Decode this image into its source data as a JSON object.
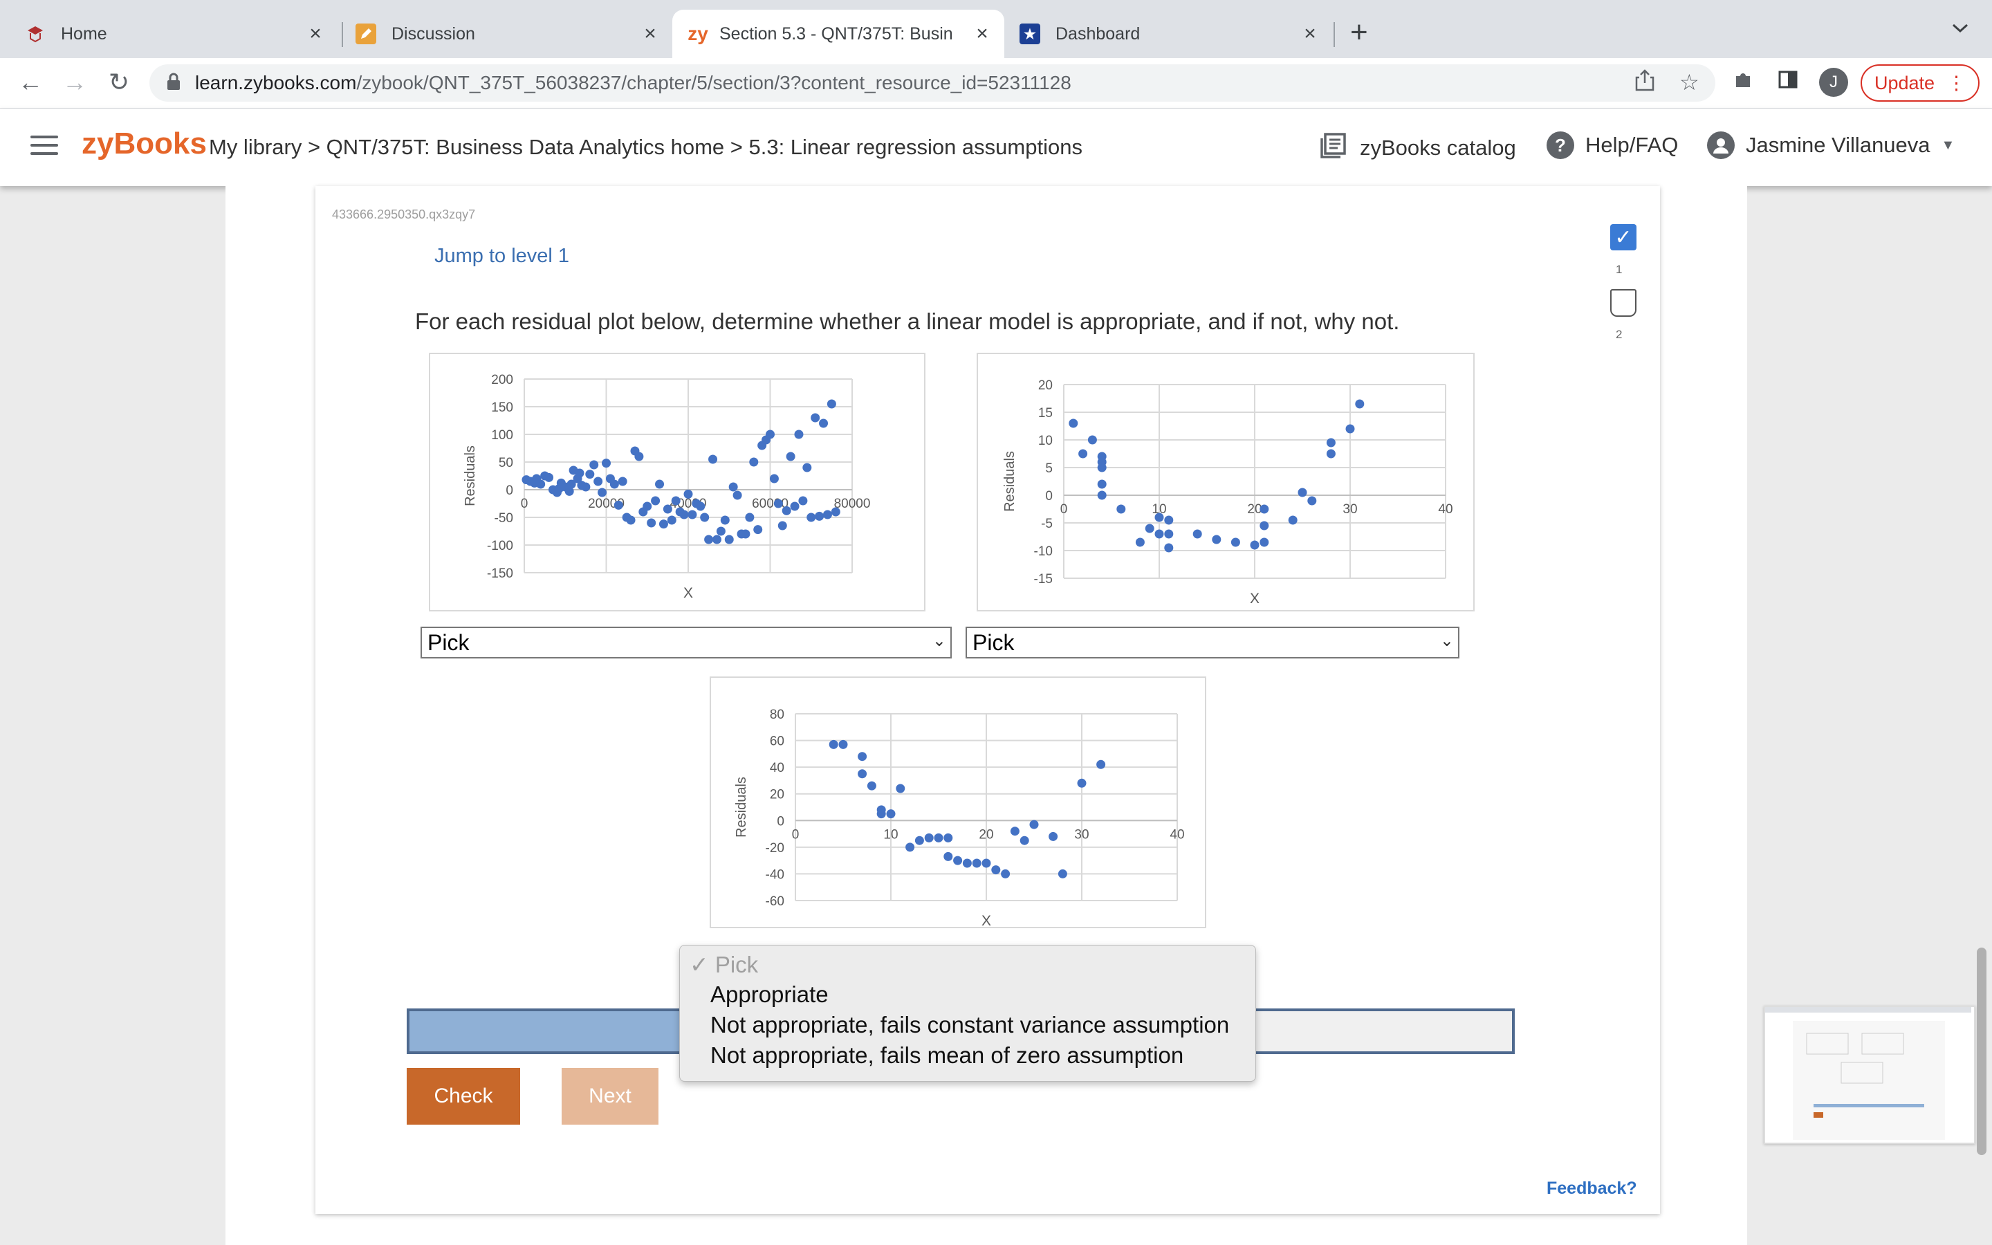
{
  "tabs": [
    {
      "label": "Home",
      "icon": "school-logo-icon"
    },
    {
      "label": "Discussion",
      "icon": "pencil-note-icon"
    },
    {
      "label": "Section 5.3 - QNT/375T: Busin",
      "icon": "zy-logo-icon",
      "icon_text": "zy"
    },
    {
      "label": "Dashboard",
      "icon": "star-badge-icon"
    }
  ],
  "tab_close": "×",
  "new_tab": "+",
  "address": {
    "host": "learn.zybooks.com",
    "path": "/zybook/QNT_375T_56038237/chapter/5/section/3?content_resource_id=52311128"
  },
  "profile_initial": "J",
  "update_label": "Update",
  "header": {
    "logo": "zyBooks",
    "breadcrumb": "My library > QNT/375T: Business Data Analytics home > 5.3: Linear regression assumptions",
    "catalog": "zyBooks catalog",
    "help": "Help/FAQ",
    "user": "Jasmine Villanueva"
  },
  "activity": {
    "id": "433666.2950350.qx3zqy7",
    "jump": "Jump to level 1",
    "levels": [
      "1",
      "2"
    ],
    "prompt": "For each residual plot below, determine whether a linear model is appropriate, and if not, why not.",
    "check": "Check",
    "next": "Next",
    "feedback": "Feedback?"
  },
  "selects": [
    {
      "value": "Pick"
    },
    {
      "value": "Pick"
    }
  ],
  "dropdown_options": [
    "✓ Pick",
    "Appropriate",
    "Not appropriate, fails constant variance assumption",
    "Not appropriate, fails mean of zero assumption"
  ],
  "chart_data": [
    {
      "type": "scatter",
      "xlabel": "X",
      "ylabel": "Residuals",
      "xlim": [
        0,
        80000
      ],
      "ylim": [
        -150,
        200
      ],
      "xticks": [
        "0",
        "20000",
        "40000",
        "60000",
        "80000"
      ],
      "yticks": [
        "200",
        "150",
        "100",
        "50",
        "0",
        "-50",
        "-100",
        "-150"
      ],
      "x": [
        500,
        1500,
        2500,
        3000,
        4000,
        5000,
        6000,
        7000,
        8000,
        8500,
        9000,
        10000,
        11000,
        11500,
        12000,
        13000,
        13500,
        14000,
        15000,
        16000,
        17000,
        18000,
        19000,
        20000,
        21000,
        22000,
        23000,
        24000,
        25000,
        26000,
        27000,
        28000,
        29000,
        30000,
        31000,
        32000,
        33000,
        34000,
        35000,
        36000,
        37000,
        38000,
        39000,
        40000,
        41000,
        42000,
        43000,
        44000,
        45000,
        46000,
        47000,
        48000,
        49000,
        50000,
        51000,
        52000,
        53000,
        54000,
        55000,
        56000,
        57000,
        58000,
        59000,
        60000,
        61000,
        62000,
        63000,
        64000,
        65000,
        66000,
        67000,
        68000,
        69000,
        70000,
        71000,
        72000,
        73000,
        74000,
        75000,
        76000
      ],
      "y": [
        18,
        15,
        12,
        20,
        10,
        25,
        22,
        0,
        -5,
        2,
        12,
        5,
        -3,
        10,
        35,
        20,
        30,
        8,
        5,
        28,
        45,
        15,
        -5,
        48,
        20,
        10,
        -28,
        15,
        -50,
        -55,
        70,
        60,
        -40,
        -30,
        -60,
        -20,
        10,
        -62,
        -35,
        -55,
        -20,
        -40,
        -45,
        -8,
        -45,
        -25,
        -30,
        -50,
        -90,
        55,
        -90,
        -75,
        -55,
        -90,
        5,
        -10,
        -80,
        -80,
        -50,
        50,
        -72,
        80,
        90,
        100,
        20,
        -25,
        -65,
        -38,
        60,
        -30,
        100,
        -20,
        40,
        -50,
        130,
        -48,
        120,
        -45,
        155,
        -40
      ],
      "y_last": [
        10
      ]
    },
    {
      "type": "scatter",
      "xlabel": "X",
      "ylabel": "Residuals",
      "xlim": [
        0,
        40
      ],
      "ylim": [
        -15,
        20
      ],
      "xticks": [
        "0",
        "10",
        "20",
        "30",
        "40"
      ],
      "yticks": [
        "20",
        "15",
        "10",
        "5",
        "0",
        "-5",
        "-10",
        "-15"
      ],
      "x": [
        1,
        2,
        3,
        4,
        4,
        4,
        4,
        4,
        6,
        8,
        9,
        10,
        10,
        11,
        11,
        11,
        14,
        16,
        18,
        20,
        21,
        21,
        21,
        24,
        25,
        26,
        28,
        28,
        30,
        31
      ],
      "y": [
        13,
        7.5,
        10,
        7,
        6,
        5,
        2,
        0,
        -2.5,
        -8.5,
        -6,
        -4,
        -7,
        -9.5,
        -4.5,
        -7,
        -7,
        -8,
        -8.5,
        -9,
        -2.5,
        -5.5,
        -8.5,
        -4.5,
        0.5,
        -1,
        7.5,
        9.5,
        12,
        16.5
      ]
    },
    {
      "type": "scatter",
      "xlabel": "X",
      "ylabel": "Residuals",
      "xlim": [
        0,
        40
      ],
      "ylim": [
        -60,
        80
      ],
      "xticks": [
        "0",
        "10",
        "20",
        "30",
        "40"
      ],
      "yticks": [
        "80",
        "60",
        "40",
        "20",
        "0",
        "-20",
        "-40",
        "-60"
      ],
      "x": [
        4,
        5,
        7,
        7,
        8,
        9,
        9,
        10,
        11,
        12,
        13,
        14,
        15,
        16,
        16,
        17,
        18,
        19,
        20,
        21,
        22,
        23,
        24,
        25,
        27,
        28,
        30,
        32
      ],
      "y": [
        57,
        57,
        48,
        35,
        26,
        8,
        5,
        5,
        24,
        -20,
        -15,
        -13,
        -13,
        -27,
        -13,
        -30,
        -32,
        -32,
        -32,
        -37,
        -40,
        -8,
        -15,
        -3,
        -12,
        -40,
        28,
        42
      ]
    }
  ]
}
